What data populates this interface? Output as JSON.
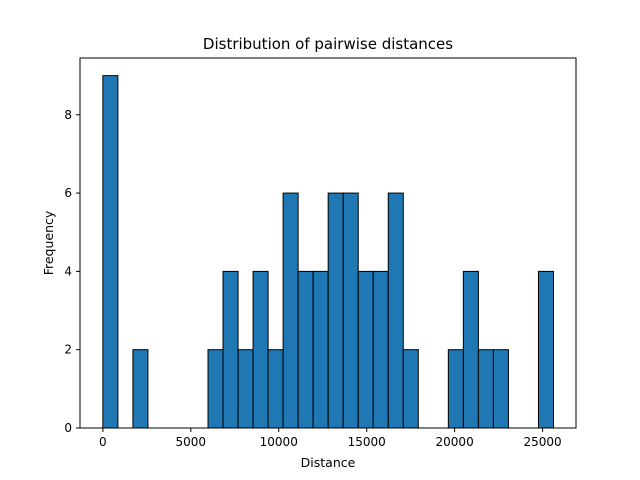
{
  "chart_data": {
    "type": "bar",
    "title": "Distribution of pairwise distances",
    "xlabel": "Distance",
    "ylabel": "Frequency",
    "xlim": [
      -1300,
      26900
    ],
    "ylim": [
      0,
      9.45
    ],
    "bar_color": "#1f77b4",
    "edge_color": "#000000",
    "grid": false,
    "x_ticks": [
      {
        "value": 0,
        "label": "0"
      },
      {
        "value": 5000,
        "label": "5000"
      },
      {
        "value": 10000,
        "label": "10000"
      },
      {
        "value": 15000,
        "label": "15000"
      },
      {
        "value": 20000,
        "label": "20000"
      },
      {
        "value": 25000,
        "label": "25000"
      }
    ],
    "y_ticks": [
      {
        "value": 0,
        "label": "0"
      },
      {
        "value": 2,
        "label": "2"
      },
      {
        "value": 4,
        "label": "4"
      },
      {
        "value": 6,
        "label": "6"
      },
      {
        "value": 8,
        "label": "8"
      }
    ],
    "bin_start": 0,
    "bin_width": 854,
    "counts": [
      9,
      0,
      2,
      0,
      0,
      0,
      0,
      2,
      4,
      2,
      4,
      2,
      6,
      4,
      4,
      6,
      6,
      4,
      4,
      6,
      2,
      0,
      0,
      2,
      4,
      2,
      2,
      0,
      0,
      4
    ]
  }
}
